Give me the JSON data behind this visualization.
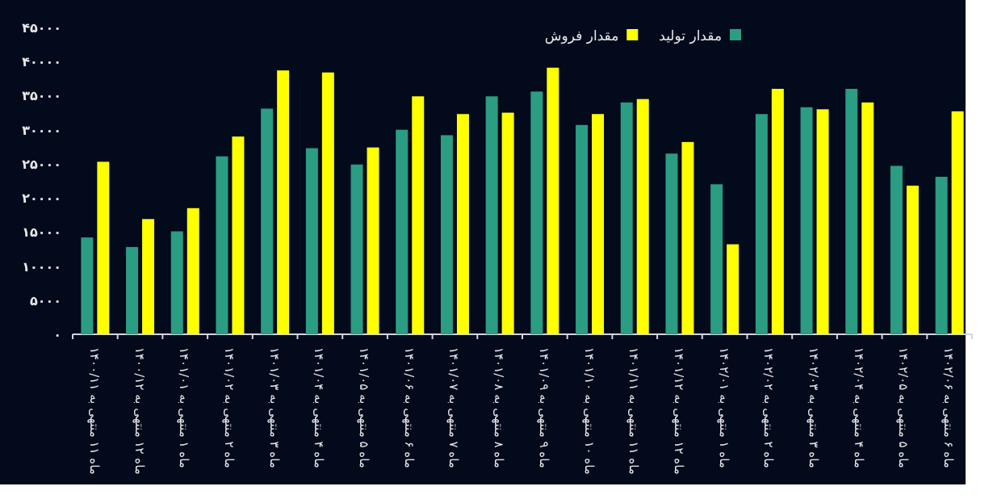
{
  "chart_data": {
    "type": "bar",
    "categories": [
      "ماه ۱۱ منتهی به ۱۴۰۰/۱۱",
      "ماه ۱۲ منتهی به ۱۴۰۰/۱۲",
      "ماه ۱ منتهی به ۱۴۰۱/۰۱",
      "ماه ۲ منتهی به ۱۴۰۱/۰۲",
      "ماه ۳ منتهی به ۱۴۰۱/۰۳",
      "ماه ۴ منتهی به ۱۴۰۱/۰۴",
      "ماه ۵ منتهی به ۱۴۰۱/۰۵",
      "ماه ۶ منتهی به ۱۴۰۱/۰۶",
      "ماه ۷ منتهی به ۱۴۰۱/۰۷",
      "ماه ۸ منتهی به ۱۴۰۱/۰۸",
      "ماه ۹ منتهی به ۱۴۰۱/۰۹",
      "ماه ۱۰ منتهی به ۱۴۰۱/۱۰",
      "ماه ۱۱ منتهی به ۱۴۰۱/۱۱",
      "ماه ۱۲ منتهی به ۱۴۰۱/۱۲",
      "ماه ۱ منتهی به ۱۴۰۲/۰۱",
      "ماه ۲ منتهی به ۱۴۰۲/۰۲",
      "ماه ۳ منتهی به ۱۴۰۲/۰۳",
      "ماه ۴ منتهی به ۱۴۰۲/۰۴",
      "ماه ۵ منتهی به ۱۴۰۲/۰۵",
      "ماه ۶ منتهی به ۱۴۰۲/۰۶"
    ],
    "series": [
      {
        "name": "مقدار تولید",
        "color": "#2a9d83",
        "values": [
          14200,
          12800,
          15100,
          26100,
          33100,
          27300,
          24900,
          30000,
          29200,
          34900,
          35600,
          30700,
          34000,
          26500,
          22000,
          32300,
          33300,
          36000,
          24700,
          23100
        ]
      },
      {
        "name": "مقدار فروش",
        "color": "#ffff00",
        "values": [
          25300,
          16900,
          18500,
          29000,
          38700,
          38400,
          27400,
          34900,
          32300,
          32500,
          39100,
          32300,
          34500,
          28200,
          13200,
          36000,
          33000,
          34000,
          21800,
          32700
        ]
      }
    ],
    "ylim": [
      0,
      45000
    ],
    "yticks": [
      {
        "value": 0,
        "label": "۰"
      },
      {
        "value": 5000,
        "label": "۵۰۰۰"
      },
      {
        "value": 10000,
        "label": "۱۰۰۰۰"
      },
      {
        "value": 15000,
        "label": "۱۵۰۰۰"
      },
      {
        "value": 20000,
        "label": "۲۰۰۰۰"
      },
      {
        "value": 25000,
        "label": "۲۵۰۰۰"
      },
      {
        "value": 30000,
        "label": "۳۰۰۰۰"
      },
      {
        "value": 35000,
        "label": "۳۵۰۰۰"
      },
      {
        "value": 40000,
        "label": "۴۰۰۰۰"
      },
      {
        "value": 45000,
        "label": "۴۵۰۰۰"
      }
    ],
    "legend": "top right"
  }
}
